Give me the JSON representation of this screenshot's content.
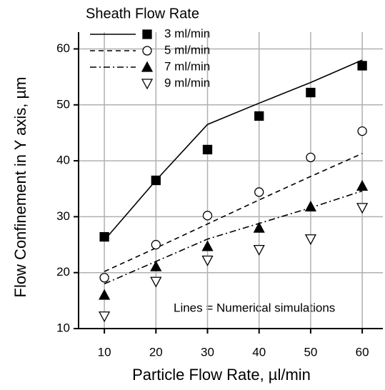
{
  "chart_data": {
    "type": "line",
    "legend_title": "Sheath Flow Rate",
    "annotation": "Lines = Numerical simulations",
    "xlabel": "Particle Flow Rate, µl/min",
    "ylabel": "Flow Confinement in Y axis, µm",
    "x": [
      10,
      20,
      30,
      40,
      50,
      60
    ],
    "series": [
      {
        "name": "3 ml/min",
        "marker": "square",
        "line": "solid",
        "values": [
          26.4,
          36.5,
          42,
          48,
          52.2,
          57
        ],
        "simulation": [
          25.8,
          36.5,
          46.5,
          50.3,
          54,
          58
        ]
      },
      {
        "name": "5 ml/min",
        "marker": "circle",
        "line": "dashed",
        "values": [
          19.1,
          25,
          30.2,
          34.4,
          40.6,
          45.3
        ],
        "simulation": [
          20.2,
          24.4,
          28.7,
          33,
          37.2,
          41.3
        ]
      },
      {
        "name": "7 ml/min",
        "marker": "triangle-up",
        "line": "dashdot",
        "values": [
          16,
          21.1,
          24.7,
          28,
          31.8,
          35.5
        ],
        "simulation": [
          18,
          22,
          26,
          28.8,
          31.6,
          34.6
        ]
      },
      {
        "name": "9 ml/min",
        "marker": "triangle-down",
        "line": null,
        "values": [
          12.2,
          18.4,
          22.2,
          24.1,
          26,
          31.6
        ]
      }
    ],
    "color": "#000000",
    "xlim": [
      5,
      64
    ],
    "xticks": [
      10,
      20,
      30,
      40,
      50,
      60
    ],
    "ylim": [
      10,
      63
    ],
    "yticks": [
      10,
      20,
      30,
      40,
      50,
      60
    ],
    "grid": true,
    "legend": "upper left"
  }
}
